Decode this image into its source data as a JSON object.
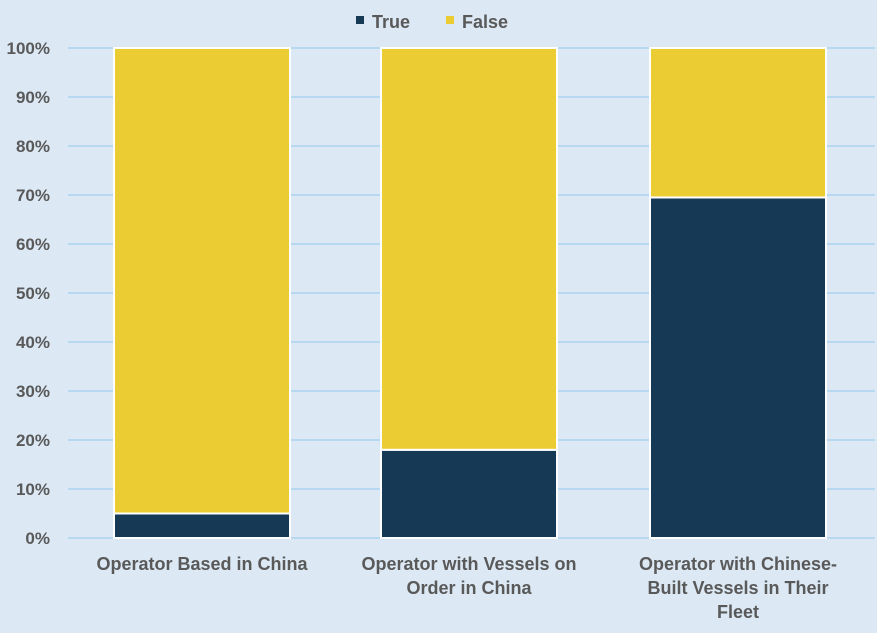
{
  "chart_data": {
    "type": "bar",
    "stacked": true,
    "categories": [
      [
        "Operator Based in China"
      ],
      [
        "Operator with Vessels on",
        "Order in China"
      ],
      [
        "Operator with Chinese-",
        "Built Vessels in Their",
        "Fleet"
      ]
    ],
    "series": [
      {
        "name": "True",
        "values": [
          5,
          18,
          69.5
        ],
        "color": "#163a55"
      },
      {
        "name": "False",
        "values": [
          95,
          82,
          30.5
        ],
        "color": "#eccc33"
      }
    ],
    "ylim": [
      0,
      100
    ],
    "yticks": [
      "0%",
      "10%",
      "20%",
      "30%",
      "40%",
      "50%",
      "60%",
      "70%",
      "80%",
      "90%",
      "100%"
    ],
    "grid": true,
    "legend_position": "top-center"
  },
  "colors": {
    "background": "#dce9f5",
    "grid": "#a9d2ee",
    "text": "#595959"
  }
}
